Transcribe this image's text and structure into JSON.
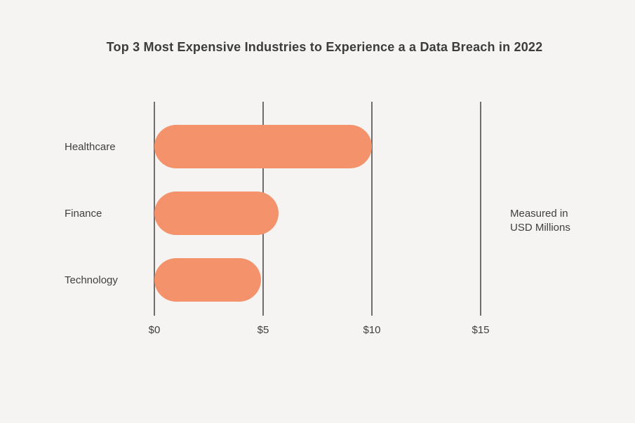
{
  "chart_data": {
    "type": "bar",
    "orientation": "horizontal",
    "title": "Top 3 Most Expensive Industries to Experience a a Data Breach in 2022",
    "categories": [
      "Healthcare",
      "Finance",
      "Technology"
    ],
    "values": [
      10.0,
      5.7,
      4.9
    ],
    "x_tick_labels": [
      "$0",
      "$5",
      "$10",
      "$15"
    ],
    "x_tick_values": [
      0,
      5,
      10,
      15
    ],
    "xlim": [
      0,
      15
    ],
    "xlabel": "",
    "ylabel": "",
    "grid": "vertical-only",
    "legend": "none",
    "annotation": {
      "lines": [
        "Measured in",
        "USD Millions"
      ]
    },
    "colors": {
      "bar": "#f4936b",
      "gridline": "#6e6e6e",
      "background": "#f5f4f2",
      "text": "#3f3f3f",
      "title": "#3c3c3c"
    }
  }
}
